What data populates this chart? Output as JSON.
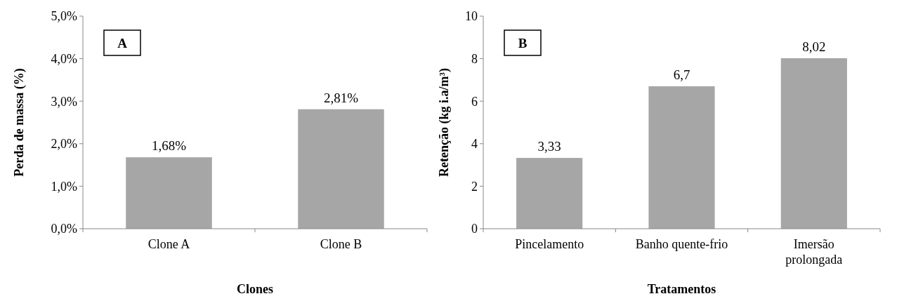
{
  "chart_data": [
    {
      "type": "bar",
      "categories": [
        "Clone A",
        "Clone B"
      ],
      "values": [
        1.68,
        2.81
      ],
      "color": "#a6a6a6",
      "value_labels": [
        "1,68%",
        "2,81%"
      ],
      "ylabel": "Perda de massa (%)",
      "xlabel": "Clones",
      "annotations": [
        "A"
      ],
      "ylim": [
        0,
        5
      ],
      "yticks": [
        {
          "value": 0,
          "label": "0,0%"
        },
        {
          "value": 1,
          "label": "1,0%"
        },
        {
          "value": 2,
          "label": "2,0%"
        },
        {
          "value": 3,
          "label": "3,0%"
        },
        {
          "value": 4,
          "label": "4,0%"
        },
        {
          "value": 5,
          "label": "5,0%"
        }
      ],
      "grid": false
    },
    {
      "type": "bar",
      "categories": [
        "Pincelamento",
        "Banho quente-frio",
        "Imersão prolongada"
      ],
      "values": [
        3.33,
        6.7,
        8.02
      ],
      "color": "#a6a6a6",
      "value_labels": [
        "3,33",
        "6,7",
        "8,02"
      ],
      "ylabel": "Retenção (kg i.a/m³)",
      "xlabel": "Tratamentos",
      "annotations": [
        "B"
      ],
      "ylim": [
        0,
        10
      ],
      "yticks": [
        0,
        2,
        4,
        6,
        8,
        10
      ],
      "grid": false
    }
  ]
}
